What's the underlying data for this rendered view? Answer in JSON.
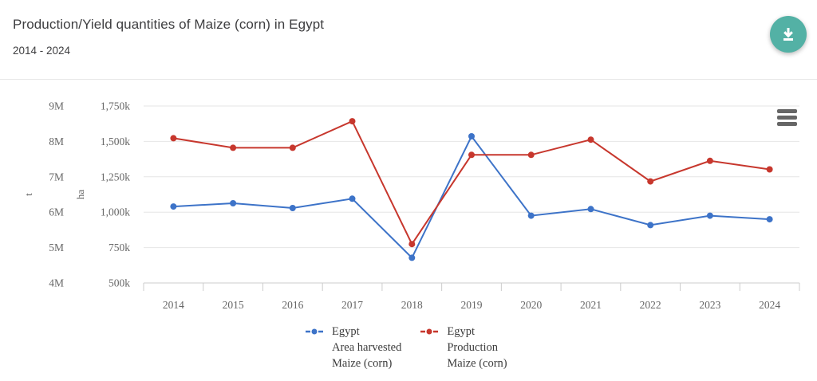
{
  "header": {
    "title": "Production/Yield quantities of Maize (corn) in Egypt",
    "subtitle": "2014 - 2024"
  },
  "icons": {
    "download": "download-icon",
    "menu": "hamburger-menu-icon"
  },
  "colors": {
    "accent_teal": "#53b1a5",
    "icon_on_accent": "#ffffff",
    "series_area": "#3d73c8",
    "series_production": "#c7372d",
    "grid": "#e6e6e6",
    "axis_line": "#cccccc",
    "axis_text": "#666666",
    "title_text": "#3e3e40",
    "legend_text": "#3c3c3c"
  },
  "chart_data": {
    "type": "line",
    "title": "Production/Yield quantities of Maize (corn) in Egypt",
    "subtitle": "2014 - 2024",
    "grid": true,
    "legend_position": "bottom",
    "x": [
      2014,
      2015,
      2016,
      2017,
      2018,
      2019,
      2020,
      2021,
      2022,
      2023,
      2024
    ],
    "axes": {
      "t": {
        "label": "t",
        "min": 4000000,
        "max": 9000000,
        "ticks": [
          "4M",
          "5M",
          "6M",
          "7M",
          "8M",
          "9M"
        ]
      },
      "ha": {
        "label": "ha",
        "min": 500000,
        "max": 1750000,
        "ticks": [
          "500k",
          "750k",
          "1,000k",
          "1,250k",
          "1,500k",
          "1,750k"
        ]
      }
    },
    "series": [
      {
        "id": "area-harvested",
        "name": "Egypt Area harvested Maize (corn)",
        "axis": "ha",
        "color": "#3d73c8",
        "values": [
          1040000,
          1063000,
          1029000,
          1095000,
          678000,
          1536000,
          975000,
          1022000,
          909000,
          975000,
          950000
        ]
      },
      {
        "id": "production",
        "name": "Egypt Production Maize (corn)",
        "axis": "t",
        "color": "#c7372d",
        "values": [
          8090000,
          7820000,
          7820000,
          8570000,
          5100000,
          7620000,
          7620000,
          8050000,
          6870000,
          7450000,
          7210000
        ]
      }
    ],
    "legend": [
      {
        "id": "area-harvested",
        "color": "#3d73c8",
        "lines": [
          "Egypt",
          "Area harvested",
          "Maize (corn)"
        ]
      },
      {
        "id": "production",
        "color": "#c7372d",
        "lines": [
          "Egypt",
          "Production",
          "Maize (corn)"
        ]
      }
    ]
  }
}
